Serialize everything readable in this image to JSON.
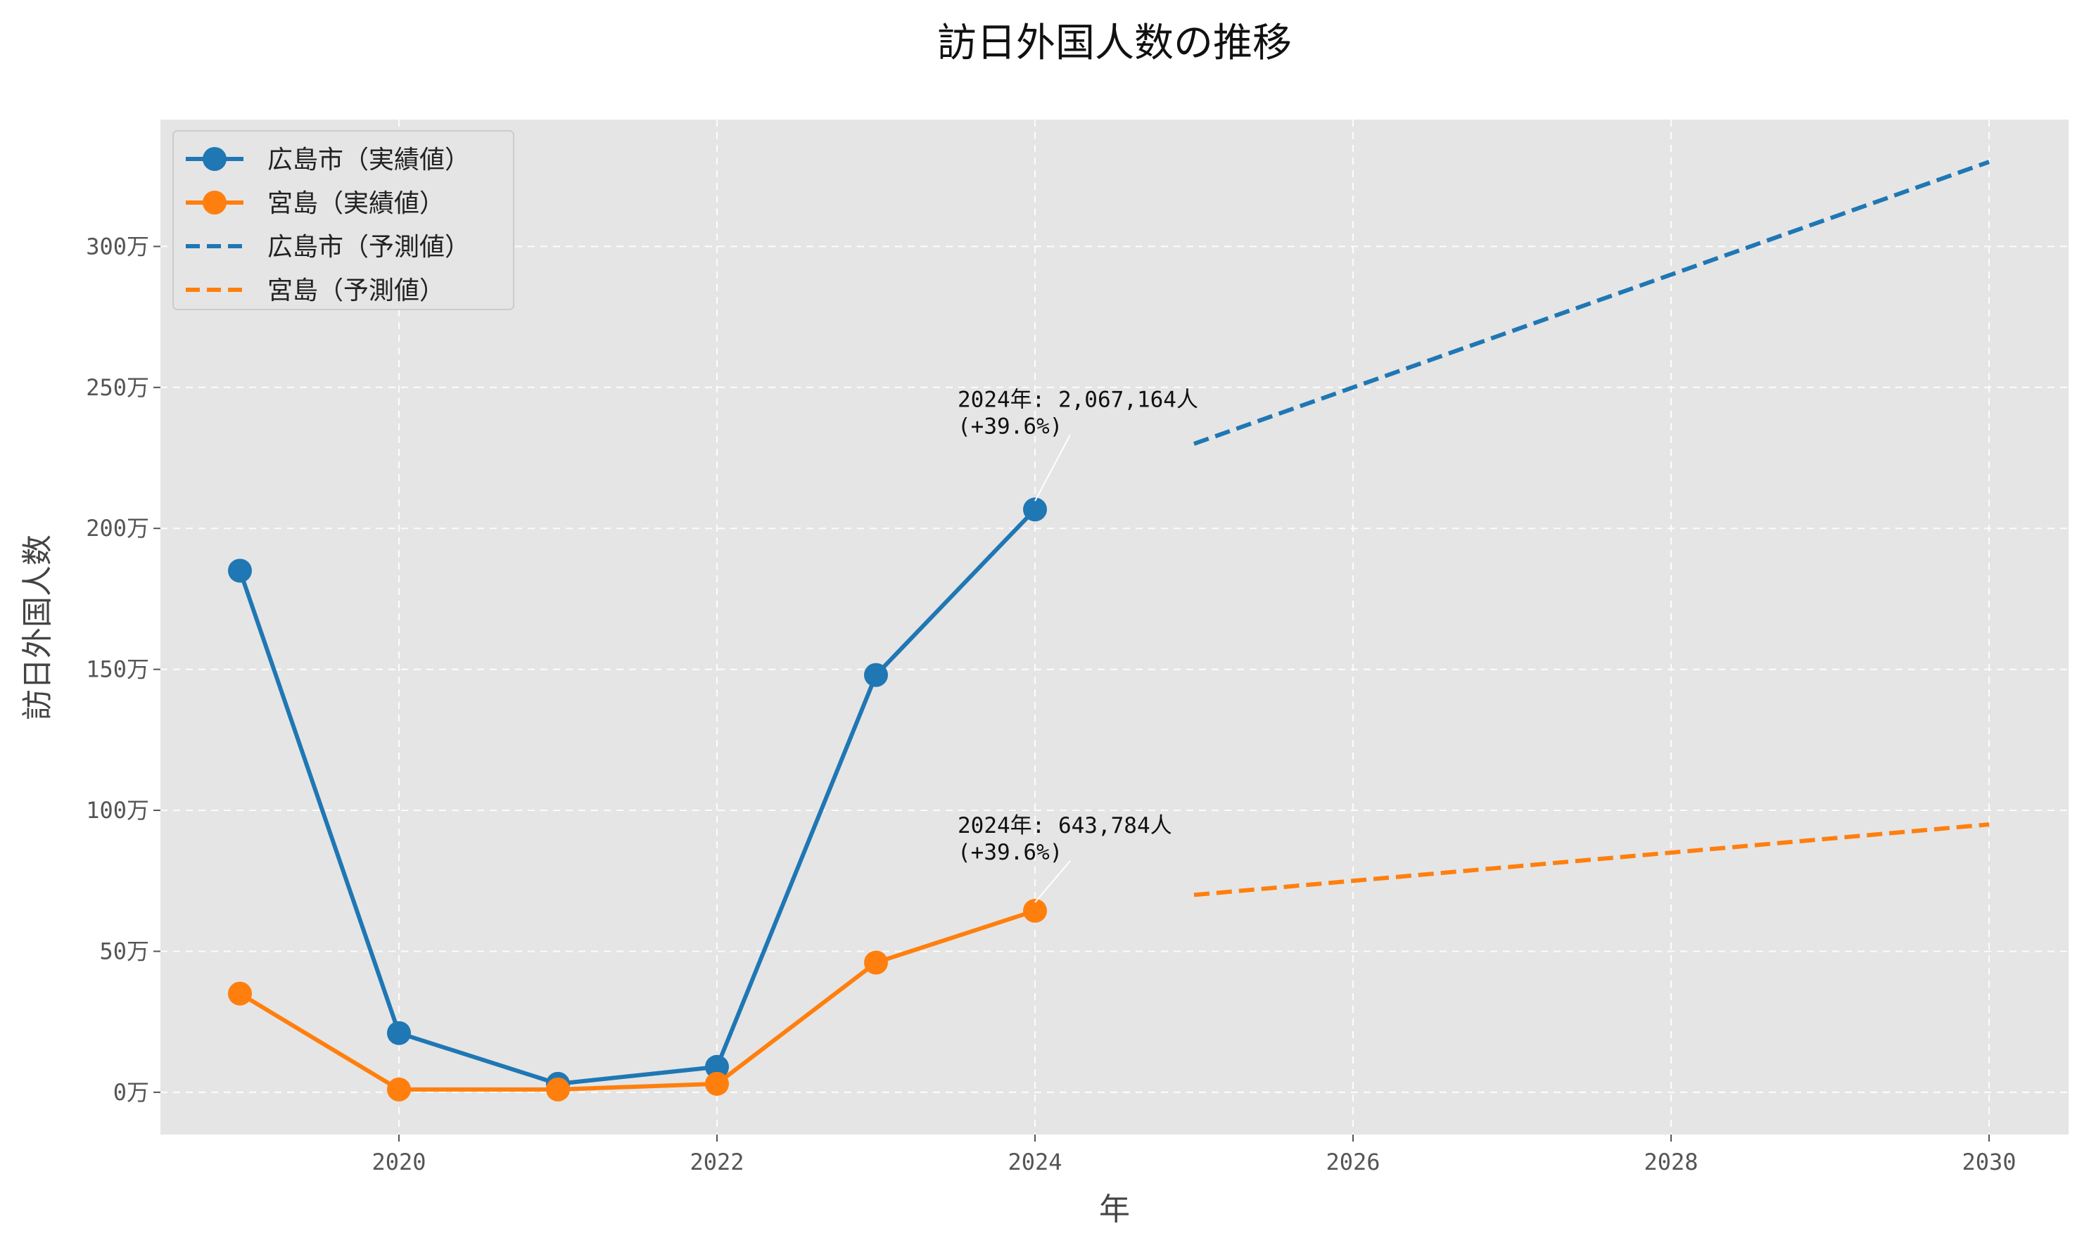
{
  "chart_data": {
    "type": "line",
    "title": "訪日外国人数の推移",
    "xlabel": "年",
    "ylabel": "訪日外国人数",
    "xlim": [
      2018.5,
      2030.5
    ],
    "ylim": [
      -150000,
      3450000
    ],
    "grid": true,
    "legend_position": "top-left",
    "x_ticks": [
      2020,
      2022,
      2024,
      2026,
      2028,
      2030
    ],
    "x_tick_labels": [
      "2020",
      "2022",
      "2024",
      "2026",
      "2028",
      "2030"
    ],
    "y_ticks": [
      0,
      500000,
      1000000,
      1500000,
      2000000,
      2500000,
      3000000
    ],
    "y_tick_labels": [
      "0万",
      "50万",
      "100万",
      "150万",
      "200万",
      "250万",
      "300万"
    ],
    "series": [
      {
        "name": "広島市（実績値）",
        "style": "solid-marker",
        "color": "#1f77b4",
        "x": [
          2019,
          2020,
          2021,
          2022,
          2023,
          2024
        ],
        "values": [
          1850000,
          210000,
          30000,
          90000,
          1480000,
          2067164
        ]
      },
      {
        "name": "宮島（実績値）",
        "style": "solid-marker",
        "color": "#ff7f0e",
        "x": [
          2019,
          2020,
          2021,
          2022,
          2023,
          2024
        ],
        "values": [
          350000,
          10000,
          10000,
          30000,
          460000,
          643784
        ]
      },
      {
        "name": "広島市（予測値）",
        "style": "dashed",
        "color": "#1f77b4",
        "x": [
          2025,
          2030
        ],
        "values": [
          2300000,
          3300000
        ]
      },
      {
        "name": "宮島（予測値）",
        "style": "dashed",
        "color": "#ff7f0e",
        "x": [
          2025,
          2030
        ],
        "values": [
          700000,
          950000
        ]
      }
    ],
    "annotations": [
      {
        "x": 2024,
        "y": 2067164,
        "line1": "2024年: 2,067,164人",
        "line2": "(+39.6%)"
      },
      {
        "x": 2024,
        "y": 643784,
        "line1": "2024年: 643,784人",
        "line2": "(+39.6%)"
      }
    ],
    "colors": {
      "plot_bg": "#e5e5e5",
      "grid": "#ffffff",
      "blue": "#1f77b4",
      "orange": "#ff7f0e"
    }
  }
}
